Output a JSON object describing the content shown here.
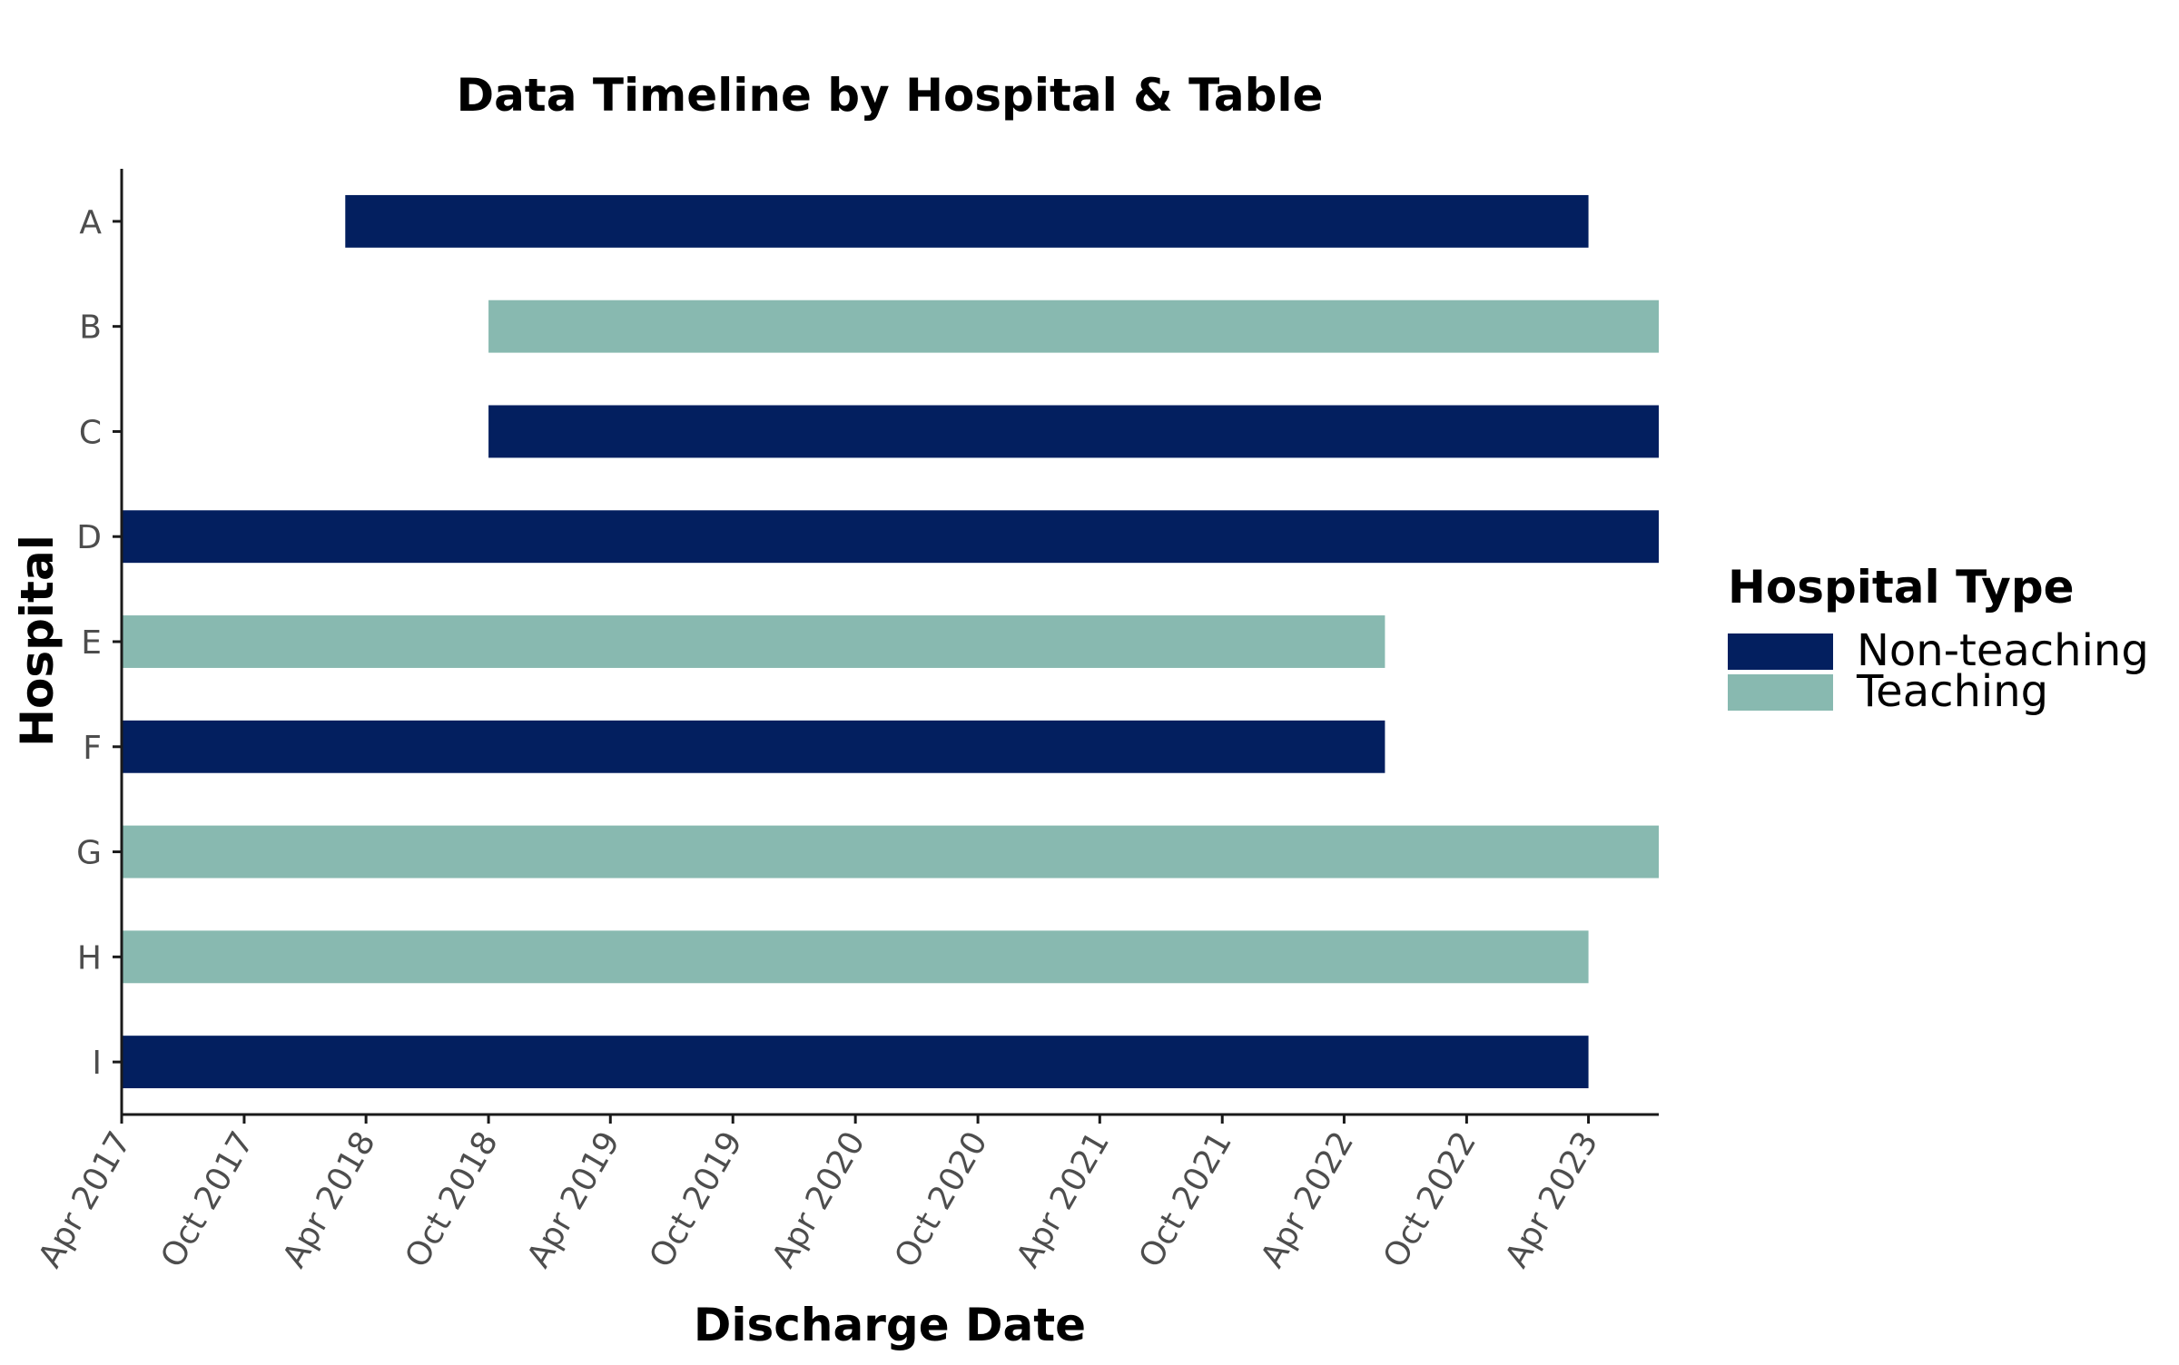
{
  "chart_data": {
    "type": "bar",
    "orientation": "horizontal-timeline",
    "title": "Data Timeline by Hospital & Table",
    "xlabel": "Discharge Date",
    "ylabel": "Hospital",
    "xlim": [
      "2017-04-01",
      "2023-07-15"
    ],
    "x_ticks": [
      "2017-04-01",
      "2017-10-01",
      "2018-04-01",
      "2018-10-01",
      "2019-04-01",
      "2019-10-01",
      "2020-04-01",
      "2020-10-01",
      "2021-04-01",
      "2021-10-01",
      "2022-04-01",
      "2022-10-01",
      "2023-04-01"
    ],
    "x_tick_labels": [
      "Apr 2017",
      "Oct 2017",
      "Apr 2018",
      "Oct 2018",
      "Apr 2019",
      "Oct 2019",
      "Apr 2020",
      "Oct 2020",
      "Apr 2021",
      "Oct 2021",
      "Apr 2022",
      "Oct 2022",
      "Apr 2023"
    ],
    "categories": [
      "A",
      "B",
      "C",
      "D",
      "E",
      "F",
      "G",
      "H",
      "I"
    ],
    "bars": [
      {
        "hospital": "A",
        "type": "Non-teaching",
        "start": "2018-03-01",
        "end": "2023-04-01"
      },
      {
        "hospital": "B",
        "type": "Teaching",
        "start": "2018-10-01",
        "end": "2023-07-15"
      },
      {
        "hospital": "C",
        "type": "Non-teaching",
        "start": "2018-10-01",
        "end": "2023-07-15"
      },
      {
        "hospital": "D",
        "type": "Non-teaching",
        "start": "2017-04-01",
        "end": "2023-07-15"
      },
      {
        "hospital": "E",
        "type": "Teaching",
        "start": "2017-04-01",
        "end": "2022-06-01"
      },
      {
        "hospital": "F",
        "type": "Non-teaching",
        "start": "2017-04-01",
        "end": "2022-06-01"
      },
      {
        "hospital": "G",
        "type": "Teaching",
        "start": "2017-04-01",
        "end": "2023-07-15"
      },
      {
        "hospital": "H",
        "type": "Teaching",
        "start": "2017-04-01",
        "end": "2023-04-01"
      },
      {
        "hospital": "I",
        "type": "Non-teaching",
        "start": "2017-04-01",
        "end": "2023-04-01"
      }
    ],
    "legend": {
      "title": "Hospital Type",
      "position": "right",
      "entries": [
        {
          "label": "Non-teaching",
          "color": "#031f5f"
        },
        {
          "label": "Teaching",
          "color": "#88b9b0"
        }
      ]
    },
    "grid": false
  }
}
